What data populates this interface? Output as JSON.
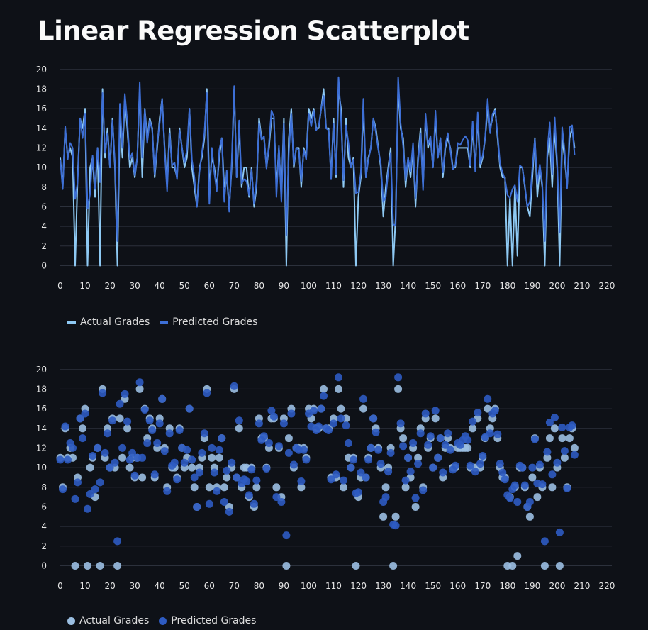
{
  "page": {
    "title": "Linear Regression Scatterplot"
  },
  "colors": {
    "actual_line": "#8ec9f3",
    "predicted_line": "#3d6fd6",
    "actual_dot": "#9bbfe2",
    "predicted_dot": "#2e5bc2",
    "grid": "#2c313c",
    "tick_text": "#e6e6e6"
  },
  "chart_data": [
    {
      "type": "line",
      "series": [
        {
          "name": "Actual Grades",
          "values": [
            11,
            8,
            14,
            11,
            12,
            11,
            0,
            9,
            15,
            14,
            16,
            0,
            10,
            11,
            7,
            12,
            0,
            18,
            11,
            14,
            10,
            15,
            10,
            0,
            15,
            11,
            17,
            14,
            10,
            11,
            9,
            11,
            18,
            9,
            16,
            13,
            15,
            14,
            9,
            12,
            15,
            17,
            12,
            8,
            14,
            10,
            10,
            9,
            14,
            12,
            10,
            11,
            16,
            10,
            8,
            6,
            10,
            11,
            13,
            18,
            8,
            11,
            10,
            8,
            11,
            13,
            8,
            9,
            6,
            10,
            18,
            9,
            14,
            8,
            10,
            10,
            7,
            10,
            6,
            8,
            15,
            13,
            13,
            10,
            12,
            15,
            15,
            8,
            12,
            7,
            15,
            0,
            13,
            16,
            10,
            12,
            12,
            8,
            12,
            11,
            16,
            15,
            16,
            14,
            14,
            16,
            18,
            14,
            14,
            9,
            15,
            9,
            18,
            16,
            8,
            15,
            11,
            10,
            11,
            0,
            7,
            9,
            16,
            9,
            11,
            12,
            15,
            14,
            12,
            10,
            5,
            8,
            10,
            12,
            0,
            5,
            18,
            14,
            13,
            8,
            11,
            9,
            12,
            6,
            11,
            14,
            8,
            15,
            12,
            13,
            10,
            15,
            11,
            13,
            9,
            12,
            13,
            12,
            10,
            10,
            12,
            12,
            12,
            12,
            12,
            10,
            14,
            10,
            15,
            10,
            11,
            13,
            16,
            14,
            15,
            16,
            13,
            10,
            9,
            9,
            0,
            7,
            0,
            8,
            1,
            10,
            10,
            8,
            6,
            5,
            9,
            13,
            7,
            10,
            8,
            0,
            11,
            13,
            8,
            14,
            10,
            0,
            13,
            11,
            8,
            13,
            14,
            12
          ],
          "color": "#8ec9f3"
        },
        {
          "name": "Predicted Grades",
          "values": [
            10.8,
            7.8,
            14.2,
            10.8,
            12.5,
            12,
            6.8,
            8.5,
            15,
            13,
            15.5,
            5.8,
            7.3,
            11.2,
            7.8,
            12,
            8.5,
            17.6,
            11.5,
            13.5,
            10,
            14.8,
            10.5,
            2.5,
            16.5,
            12,
            17.5,
            14.7,
            10.8,
            11.5,
            9.2,
            11,
            18.7,
            11,
            15.9,
            12.5,
            14.8,
            13.8,
            9.3,
            12.5,
            14.5,
            17,
            11.7,
            7.6,
            13.5,
            10.2,
            10.5,
            8.8,
            13.8,
            12,
            10.5,
            11.8,
            16,
            10.8,
            9,
            6,
            9.5,
            11.5,
            13.5,
            17.6,
            6.3,
            12,
            9.5,
            7.6,
            11.8,
            13,
            6.5,
            9.7,
            5.5,
            10.5,
            18.3,
            9,
            14.8,
            8.4,
            8.8,
            8.6,
            7.2,
            9.8,
            6.3,
            8.7,
            14.5,
            12.8,
            13.2,
            9.9,
            12.5,
            15.8,
            15.2,
            7,
            12.2,
            6.5,
            14.5,
            3.1,
            11.5,
            15.5,
            10.3,
            12,
            11.8,
            8.6,
            11.8,
            10.8,
            15.5,
            14.2,
            15.8,
            13.8,
            14.2,
            16,
            17.3,
            14,
            13.8,
            8.8,
            14.5,
            9.3,
            19.2,
            15,
            8.7,
            14.3,
            12.5,
            10,
            10.8,
            7.4,
            7.5,
            9.5,
            17,
            9,
            10.8,
            12,
            15,
            13.6,
            11.8,
            10.4,
            6.5,
            7,
            9.6,
            11.5,
            4.2,
            4.1,
            19.2,
            14.5,
            12.2,
            8.7,
            11,
            9.6,
            12.5,
            6.9,
            10.4,
            13.5,
            7.7,
            15.5,
            12.3,
            13.2,
            10,
            15.8,
            11,
            13,
            9.5,
            12.3,
            13.5,
            11.8,
            9.8,
            10.2,
            12.5,
            12.3,
            12.8,
            13.2,
            12.8,
            10.2,
            14.7,
            9.6,
            15.6,
            10.4,
            11.2,
            13.1,
            17,
            13.5,
            15.5,
            15.8,
            13.4,
            10.4,
            9.5,
            8.8,
            7.2,
            6.9,
            7.8,
            8.2,
            6.5,
            10.2,
            10,
            8.2,
            6,
            6.5,
            10,
            12.9,
            8.4,
            10.3,
            8.3,
            2.5,
            11.6,
            14.6,
            9.3,
            15.1,
            10.5,
            3.4,
            14.1,
            11.7,
            7.9,
            14.1,
            14.3,
            11.3
          ],
          "color": "#3d6fd6"
        }
      ],
      "x": {
        "start": 0,
        "step": 1
      },
      "x_ticks": [
        "0",
        "10",
        "20",
        "30",
        "40",
        "50",
        "60",
        "70",
        "80",
        "90",
        "100",
        "110",
        "120",
        "130",
        "140",
        "150",
        "160",
        "170",
        "180",
        "190",
        "200",
        "210",
        "220"
      ],
      "y_ticks": [
        "0",
        "2",
        "4",
        "6",
        "8",
        "10",
        "12",
        "14",
        "16",
        "18",
        "20"
      ],
      "xlim": [
        0,
        222
      ],
      "ylim": [
        -0.4,
        20.2
      ],
      "legend": "bottom-left",
      "grid": true
    },
    {
      "type": "scatter",
      "series": [
        {
          "name": "Actual Grades",
          "ref": "Actual Grades",
          "color": "#9bbfe2"
        },
        {
          "name": "Predicted Grades",
          "ref": "Predicted Grades",
          "color": "#2e5bc2"
        }
      ],
      "x_ticks": [
        "0",
        "10",
        "20",
        "30",
        "40",
        "50",
        "60",
        "70",
        "80",
        "90",
        "100",
        "110",
        "120",
        "130",
        "140",
        "150",
        "160",
        "170",
        "180",
        "190",
        "200",
        "210",
        "220"
      ],
      "y_ticks": [
        "0",
        "2",
        "4",
        "6",
        "8",
        "10",
        "12",
        "14",
        "16",
        "18",
        "20"
      ],
      "xlim": [
        0,
        222
      ],
      "ylim": [
        -0.4,
        20.2
      ],
      "legend": "bottom-left",
      "grid": true
    }
  ],
  "legends": {
    "line": [
      "Actual Grades",
      "Predicted Grades"
    ],
    "scatter": [
      "Actual Grades",
      "Predicted Grades"
    ]
  }
}
